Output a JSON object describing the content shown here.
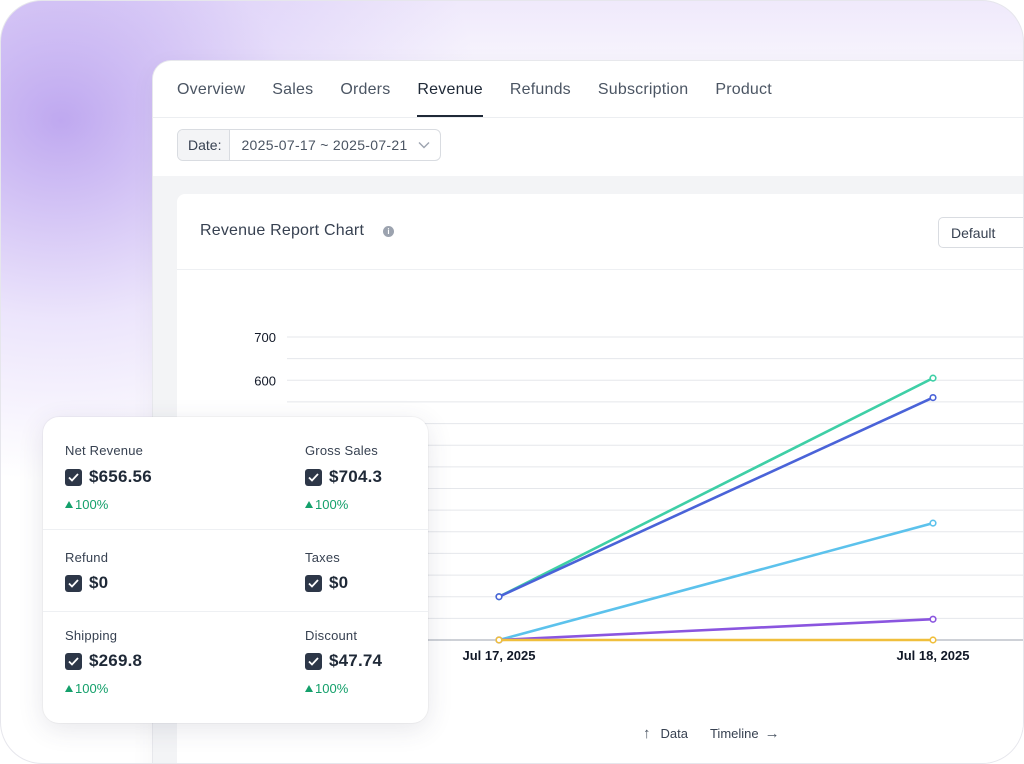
{
  "tabs": [
    {
      "label": "Overview",
      "active": false
    },
    {
      "label": "Sales",
      "active": false
    },
    {
      "label": "Orders",
      "active": false
    },
    {
      "label": "Revenue",
      "active": true
    },
    {
      "label": "Refunds",
      "active": false
    },
    {
      "label": "Subscription",
      "active": false
    },
    {
      "label": "Product",
      "active": false
    }
  ],
  "date_filter": {
    "label": "Date:",
    "value": "2025-07-17 ~ 2025-07-21"
  },
  "chart_card": {
    "title": "Revenue Report Chart",
    "view_select": "Default",
    "controls": {
      "data_label": "Data",
      "timeline_label": "Timeline"
    }
  },
  "chart_data": {
    "type": "line",
    "x": [
      "Jul 17, 2025",
      "Jul 18, 2025"
    ],
    "ylim": [
      0,
      700
    ],
    "yticks_visible": [
      600,
      700
    ],
    "grid": true,
    "series": [
      {
        "color": "#3ecfa6",
        "values": [
          100,
          605
        ]
      },
      {
        "color": "#4a63d8",
        "values": [
          100,
          560
        ]
      },
      {
        "color": "#5cc2ec",
        "values": [
          0,
          270
        ]
      },
      {
        "color": "#8a55df",
        "values": [
          0,
          48
        ]
      },
      {
        "color": "#f0bf3c",
        "values": [
          0,
          0
        ]
      }
    ]
  },
  "stats": {
    "net_revenue": {
      "label": "Net Revenue",
      "value": "$656.56",
      "change": "100%"
    },
    "gross_sales": {
      "label": "Gross Sales",
      "value": "$704.3",
      "change": "100%"
    },
    "refund": {
      "label": "Refund",
      "value": "$0"
    },
    "taxes": {
      "label": "Taxes",
      "value": "$0"
    },
    "shipping": {
      "label": "Shipping",
      "value": "$269.8",
      "change": "100%"
    },
    "discount": {
      "label": "Discount",
      "value": "$47.74",
      "change": "100%"
    }
  }
}
